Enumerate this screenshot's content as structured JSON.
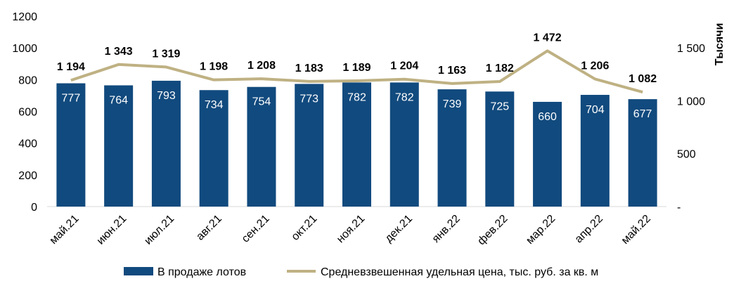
{
  "chart_data": {
    "type": "bar",
    "categories": [
      "май.21",
      "июн.21",
      "июл.21",
      "авг.21",
      "сен.21",
      "окт.21",
      "ноя.21",
      "дек.21",
      "янв.22",
      "фев.22",
      "мар.22",
      "апр.22",
      "май.22"
    ],
    "series": [
      {
        "name": "В продаже лотов",
        "type": "bar",
        "axis": "left",
        "color": "#114A7E",
        "values": [
          777,
          764,
          793,
          734,
          754,
          773,
          782,
          782,
          739,
          725,
          660,
          704,
          677
        ],
        "labels": [
          "777",
          "764",
          "793",
          "734",
          "754",
          "773",
          "782",
          "782",
          "739",
          "725",
          "660",
          "704",
          "677"
        ]
      },
      {
        "name": "Средневзвешенная удельная цена, тыс. руб. за кв. м",
        "type": "line",
        "axis": "right",
        "color": "#BFB183",
        "values": [
          1194,
          1343,
          1319,
          1198,
          1208,
          1183,
          1189,
          1204,
          1163,
          1182,
          1472,
          1206,
          1082
        ],
        "labels": [
          "1 194",
          "1 343",
          "1 319",
          "1 198",
          "1 208",
          "1 183",
          "1 189",
          "1 204",
          "1 163",
          "1 182",
          "1 472",
          "1 206",
          "1 082"
        ]
      }
    ],
    "y_left": {
      "min": 0,
      "max": 1200,
      "ticks": [
        "0",
        "200",
        "400",
        "600",
        "800",
        "1000",
        "1200"
      ]
    },
    "y_right": {
      "min": 0,
      "max": 1800,
      "tick_values": [
        0,
        500,
        1000,
        1500
      ],
      "tick_labels": [
        "-",
        "500",
        "1 000",
        "1 500"
      ],
      "title": "Тысячи"
    },
    "legend_position": "bottom"
  }
}
